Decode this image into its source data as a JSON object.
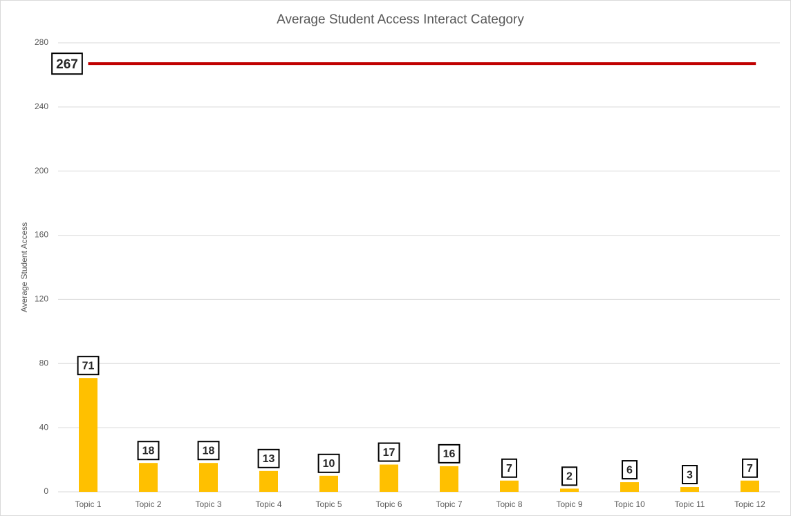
{
  "chart_data": {
    "type": "bar",
    "title": "Average Student Access Interact Category",
    "y_label": "Average Student Access",
    "categories": [
      "Topic 1",
      "Topic 2",
      "Topic 3",
      "Topic 4",
      "Topic 5",
      "Topic 6",
      "Topic 7",
      "Topic 8",
      "Topic 9",
      "Topic 10",
      "Topic 11",
      "Topic 12"
    ],
    "values": [
      71,
      18,
      18,
      13,
      10,
      17,
      16,
      7,
      2,
      6,
      3,
      7
    ],
    "color": "#ffc000",
    "reference_line": {
      "value": 267,
      "color": "#c00000"
    },
    "ylim": [
      0,
      280
    ],
    "yticks": [
      0,
      40,
      80,
      120,
      160,
      200,
      240,
      280
    ],
    "grid": true
  }
}
